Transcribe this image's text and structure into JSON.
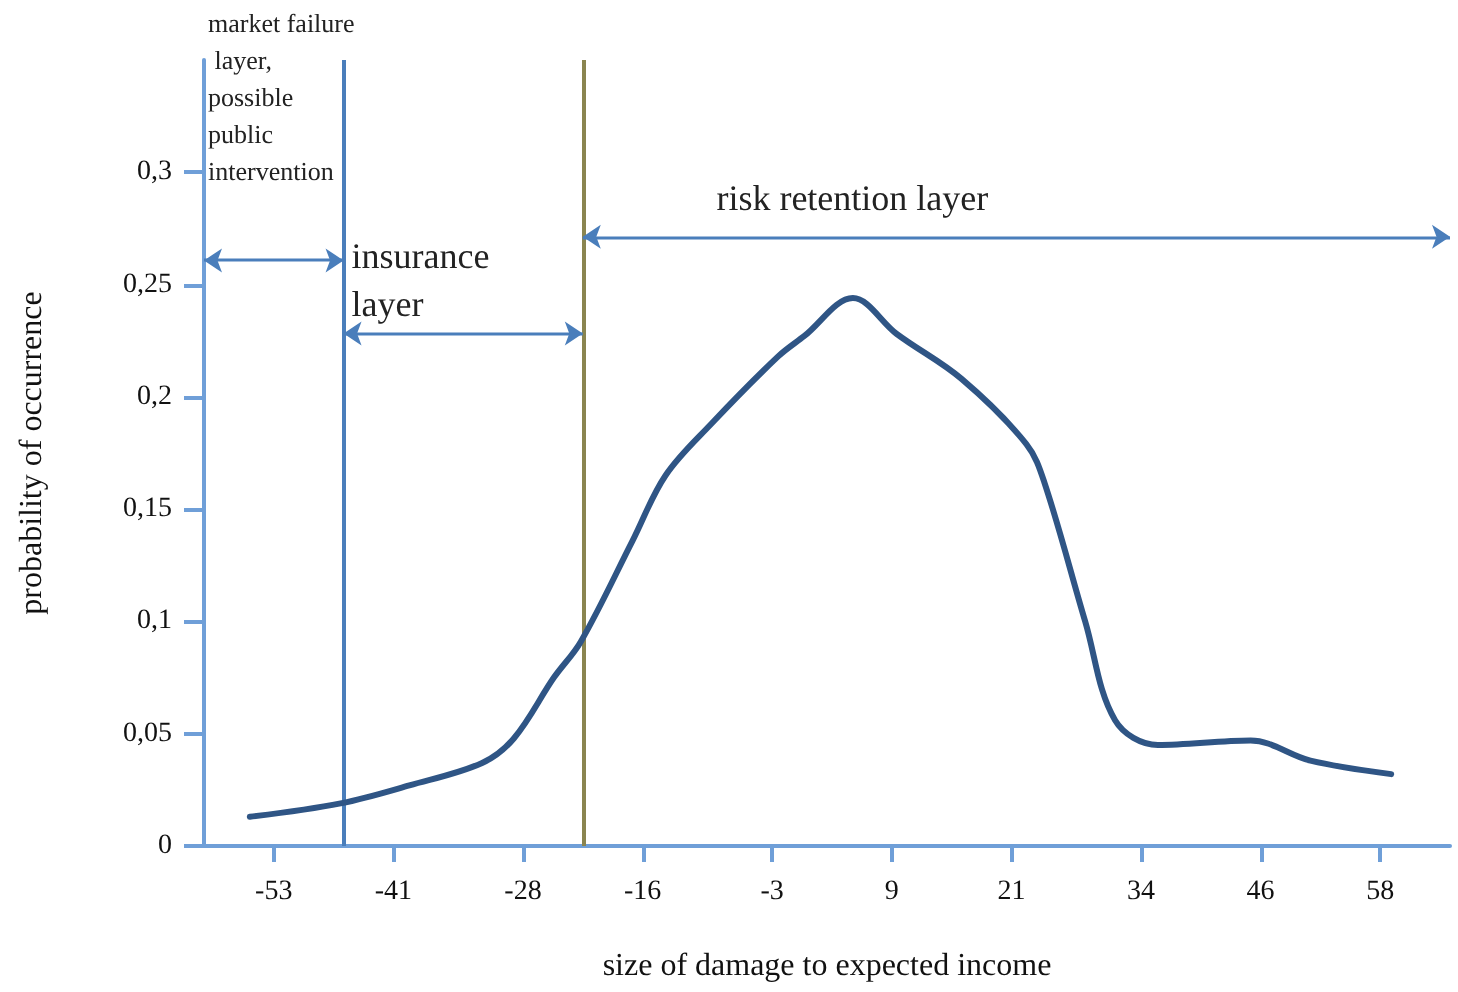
{
  "chart_data": {
    "type": "line",
    "xlabel": "size of damage to expected income",
    "ylabel": "probability of occurrence",
    "x": [
      -55.4,
      -46.3,
      -39.4,
      -32.1,
      -28.9,
      -24.9,
      -22.2,
      -17.0,
      -13.7,
      -9.1,
      -2.4,
      0.2,
      5.1,
      9.5,
      16.0,
      22.5,
      24.3,
      28.4,
      31.4,
      35.7,
      45.0,
      51.0,
      59.1
    ],
    "series": [
      {
        "color": "#2f5585",
        "values": [
          0.013,
          0.019,
          0.027,
          0.037,
          0.048,
          0.075,
          0.091,
          0.136,
          0.165,
          0.188,
          0.218,
          0.227,
          0.244,
          0.228,
          0.208,
          0.179,
          0.162,
          0.1,
          0.056,
          0.045,
          0.047,
          0.038,
          0.032
        ]
      }
    ],
    "xlim": [
      -60,
      65
    ],
    "xticks": [
      -53,
      -41,
      -28,
      -16,
      -3,
      9,
      21,
      34,
      46,
      58
    ],
    "ylim": [
      0,
      0.35
    ],
    "yticks": [
      0,
      {
        "value": 0.05,
        "label": "0,05"
      },
      {
        "value": 0.1,
        "label": "0,1"
      },
      {
        "value": 0.15,
        "label": "0,15"
      },
      {
        "value": 0.2,
        "label": "0,2"
      },
      {
        "value": 0.25,
        "label": "0,25"
      },
      {
        "value": 0.3,
        "label": "0,3"
      }
    ],
    "ref_lines": [
      {
        "axis": "x",
        "value": -46,
        "color": "#4a7ebb"
      },
      {
        "axis": "x",
        "value": -22,
        "color": "#8a8550"
      }
    ],
    "annotations": [
      "market failure layer, possible public intervention",
      "insurance layer",
      "risk retention layer"
    ],
    "line_style": "solid"
  }
}
